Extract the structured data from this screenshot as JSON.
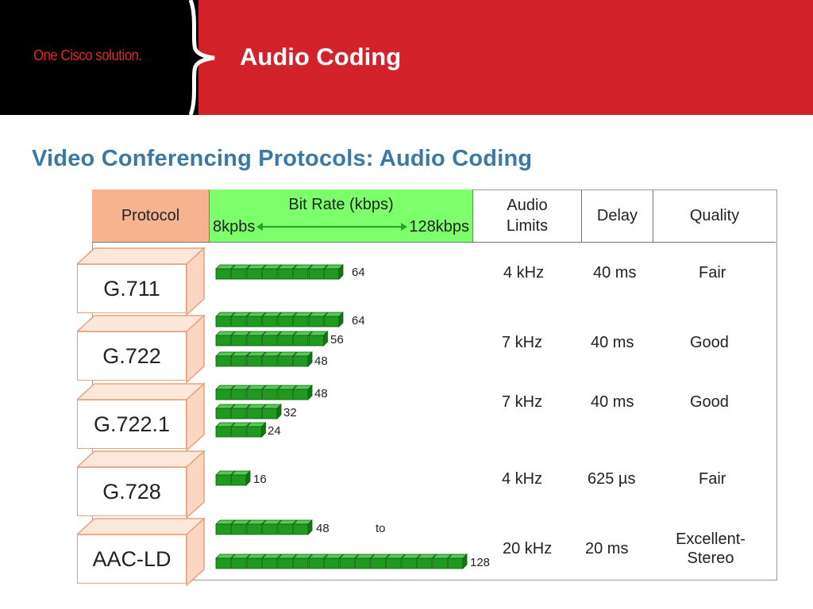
{
  "header": {
    "tagline": "One Cisco solution.",
    "title": "Audio Coding"
  },
  "subtitle": "Video Conferencing Protocols: Audio Coding",
  "table": {
    "headers": {
      "protocol": "Protocol",
      "bit_rate": "Bit Rate (kbps)",
      "bit_rate_min": "8kpbs",
      "bit_rate_max": "128kbps",
      "audio_limits": "Audio Limits",
      "delay": "Delay",
      "quality": "Quality"
    },
    "note_to": "to"
  },
  "colors": {
    "header_red": "#d4222a",
    "protocol_header": "#f6b38f",
    "bitrate_header": "#7cff6a",
    "bar_green": "#1f9a1f",
    "subtitle_blue": "#3a78a8"
  },
  "chart_data": {
    "type": "bar",
    "title": "Video Conferencing Protocols: Audio Coding",
    "xlabel": "Bit Rate (kbps)",
    "xlim": [
      8,
      128
    ],
    "unit_kbps_per_block": 8,
    "rows": [
      {
        "protocol": "G.711",
        "bit_rates": [
          64
        ],
        "audio_limit": "4 kHz",
        "delay": "40 ms",
        "quality": "Fair"
      },
      {
        "protocol": "G.722",
        "bit_rates": [
          64,
          56,
          48
        ],
        "audio_limit": "7 kHz",
        "delay": "40 ms",
        "quality": "Good"
      },
      {
        "protocol": "G.722.1",
        "bit_rates": [
          48,
          32,
          24
        ],
        "audio_limit": "7 kHz",
        "delay": "40 ms",
        "quality": "Good"
      },
      {
        "protocol": "G.728",
        "bit_rates": [
          16
        ],
        "audio_limit": "4 kHz",
        "delay": "625 µs",
        "quality": "Fair"
      },
      {
        "protocol": "AAC-LD",
        "bit_rates": [
          48,
          128
        ],
        "audio_limit": "20 kHz",
        "delay": "20 ms",
        "quality": "Excellent-Stereo"
      }
    ]
  }
}
